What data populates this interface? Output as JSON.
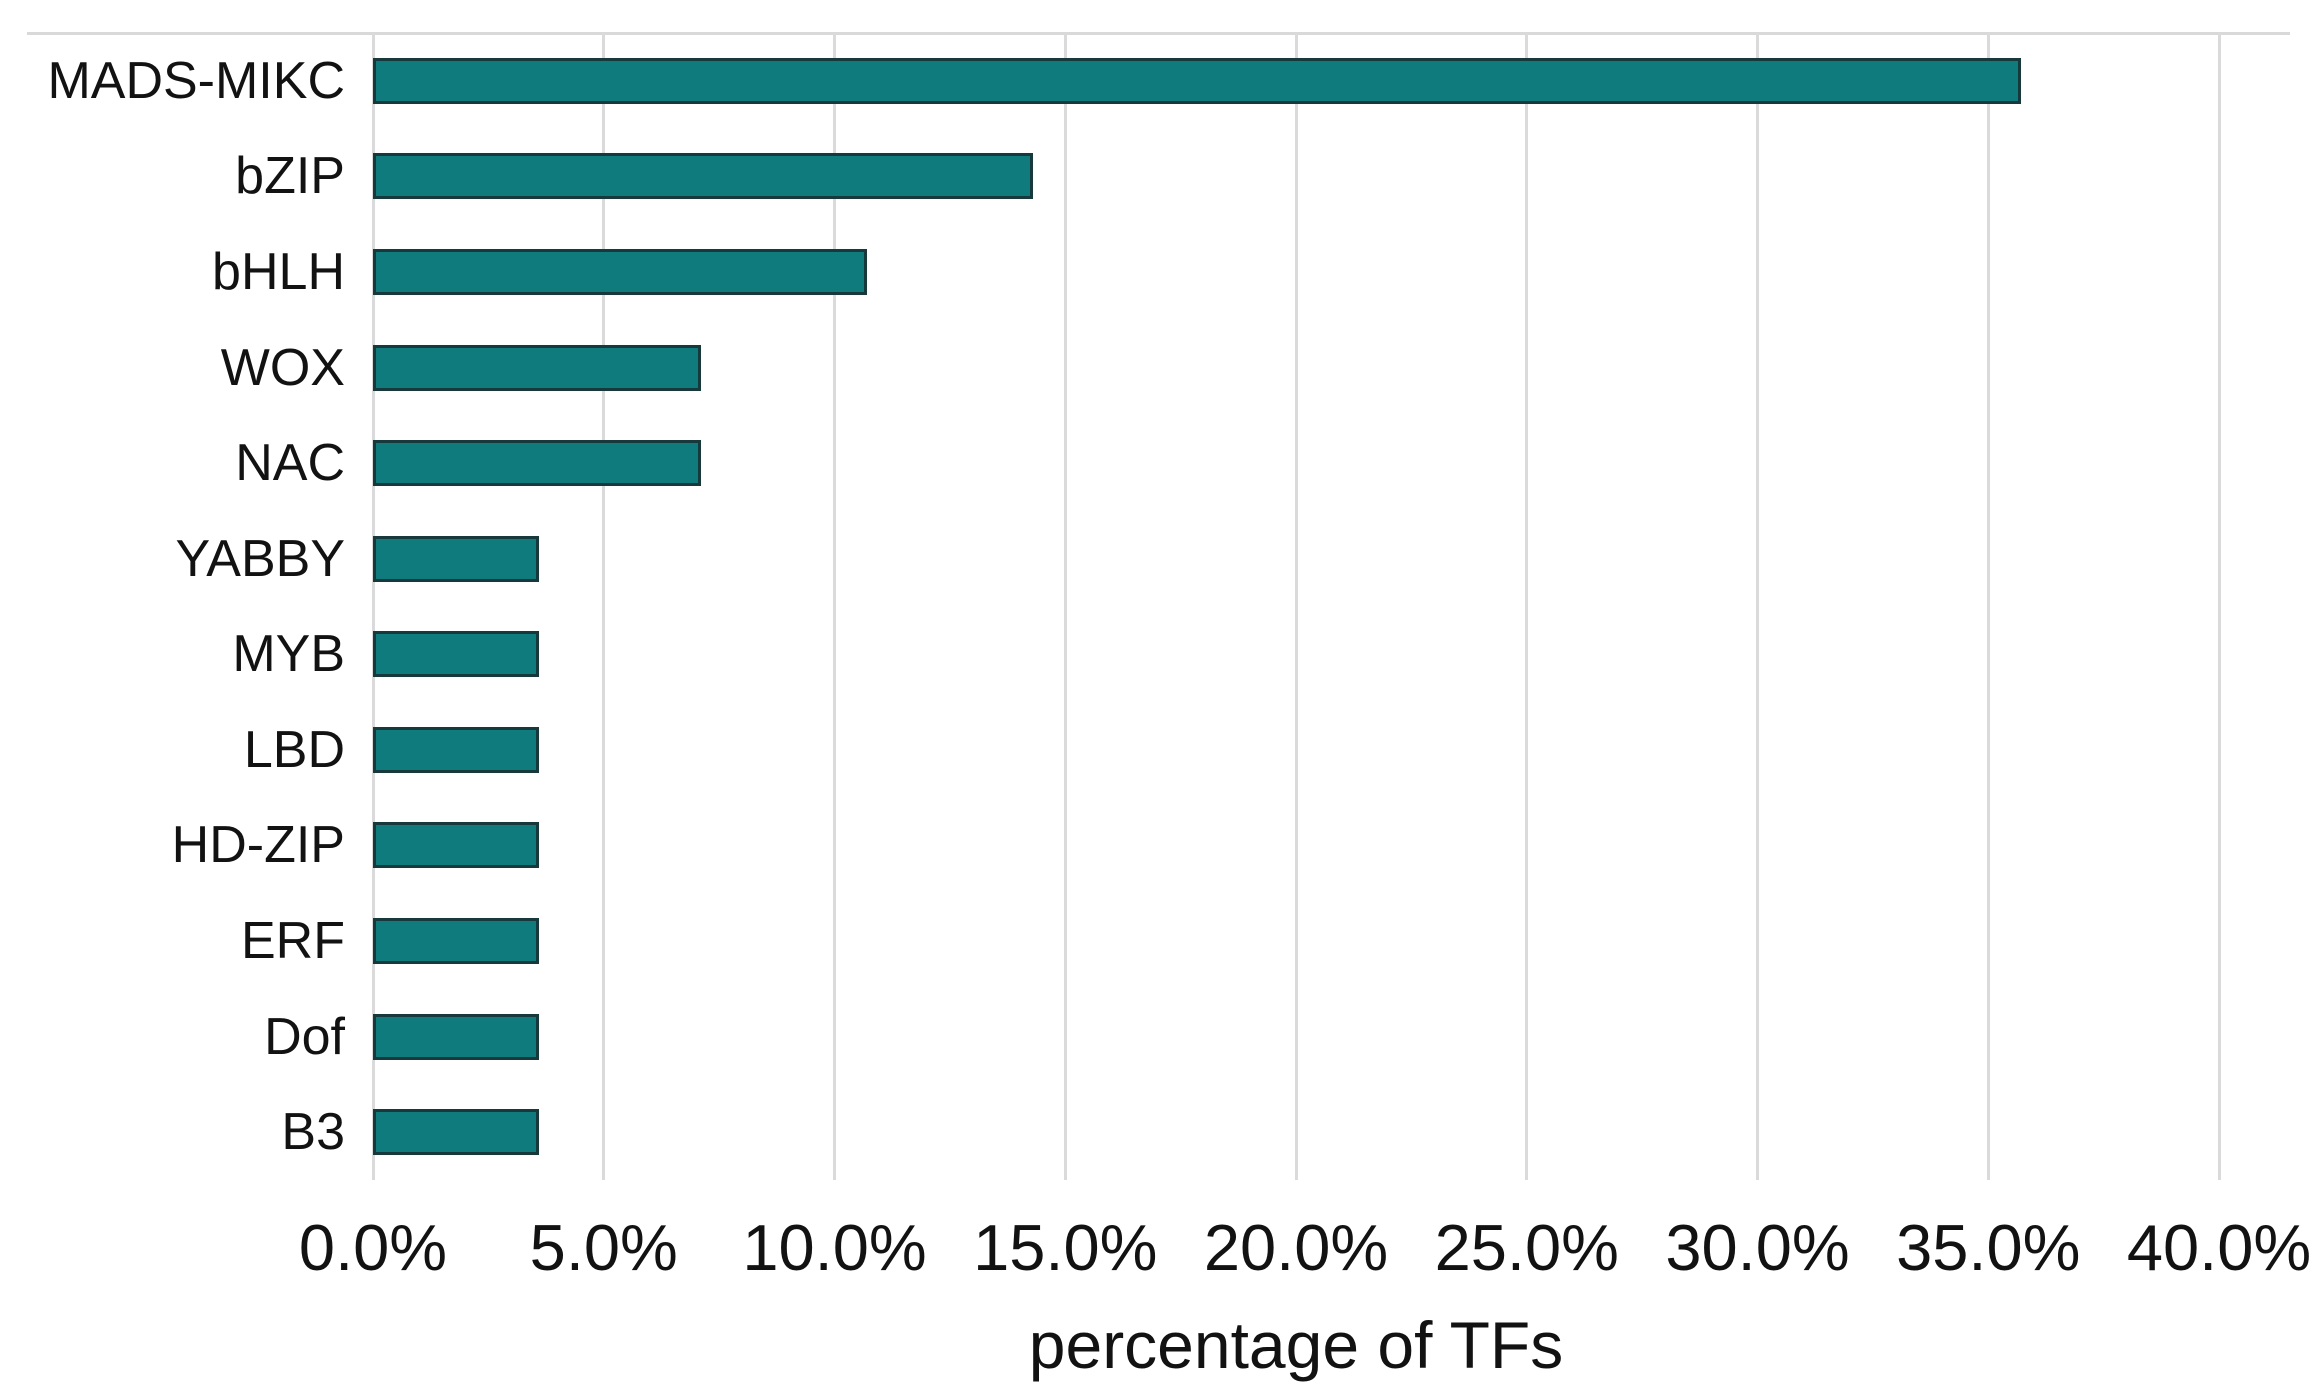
{
  "chart_data": {
    "type": "bar",
    "orientation": "horizontal",
    "title": "",
    "xlabel": "percentage of TFs",
    "ylabel": "",
    "categories": [
      "MADS-MIKC",
      "bZIP",
      "bHLH",
      "WOX",
      "NAC",
      "YABBY",
      "MYB",
      "LBD",
      "HD-ZIP",
      "ERF",
      "Dof",
      "B3"
    ],
    "values": [
      35.7,
      14.3,
      10.7,
      7.1,
      7.1,
      3.6,
      3.6,
      3.6,
      3.6,
      3.6,
      3.6,
      3.6
    ],
    "unit": "%",
    "xlim": [
      0,
      40
    ],
    "xticks": [
      0,
      5,
      10,
      15,
      20,
      25,
      30,
      35,
      40
    ],
    "xtick_labels": [
      "0.0%",
      "5.0%",
      "10.0%",
      "15.0%",
      "20.0%",
      "25.0%",
      "30.0%",
      "35.0%",
      "40.0%"
    ],
    "grid": "vertical-only",
    "legend": "none",
    "colors": {
      "bar_fill": "#0f7b7d",
      "bar_border": "#17393b",
      "gridline": "#dadada",
      "text": "#121212",
      "background": "#ffffff"
    }
  }
}
